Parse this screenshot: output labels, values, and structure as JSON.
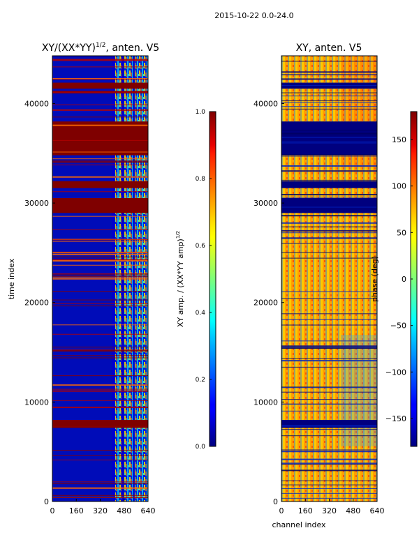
{
  "suptitle": "2015-10-22 0.0-24.0",
  "chart_data": [
    {
      "type": "heatmap",
      "title": "XY/(XX*YY)^{1/2}, anten. V5",
      "title_main": "XY/(XX*YY)",
      "title_exp": "1/2",
      "title_suffix": ", anten. V5",
      "xlabel": "",
      "ylabel": "time index",
      "xlim": [
        0,
        640
      ],
      "ylim": [
        0,
        44800
      ],
      "xticks": [
        0,
        160,
        320,
        480,
        640
      ],
      "yticks": [
        0,
        10000,
        20000,
        30000,
        40000
      ],
      "colormap": "jet",
      "saturated_rows": [
        [
          7400,
          8200
        ],
        [
          29000,
          30500
        ],
        [
          31500,
          32200
        ],
        [
          34800,
          38200
        ],
        [
          41500,
          42100
        ]
      ],
      "colorbar": {
        "label": "XY amp. / (XX*YY amp)^{1/2}",
        "label_main": "XY amp. / (XX*YY amp)",
        "label_exp": "1/2",
        "range": [
          0.0,
          1.0
        ],
        "ticks": [
          "0.0",
          "0.2",
          "0.4",
          "0.6",
          "0.8",
          "1.0"
        ]
      }
    },
    {
      "type": "heatmap",
      "title": "XY, anten. V5",
      "xlabel": "channel index",
      "ylabel": "",
      "xlim": [
        0,
        640
      ],
      "ylim": [
        0,
        44800
      ],
      "xticks": [
        0,
        160,
        320,
        480,
        640
      ],
      "yticks": [
        0,
        10000,
        20000,
        30000,
        40000
      ],
      "colormap": "jet",
      "constant_rows": [
        [
          7400,
          8200
        ],
        [
          29000,
          30500
        ],
        [
          31500,
          32200
        ],
        [
          34800,
          38200
        ],
        [
          41500,
          42100
        ]
      ],
      "colorbar": {
        "label": "phase (deg)",
        "range": [
          -180,
          180
        ],
        "ticks": [
          "150",
          "100",
          "50",
          "0",
          "−50",
          "−100",
          "−150"
        ],
        "tick_values": [
          150,
          100,
          50,
          0,
          -50,
          -100,
          -150
        ]
      }
    }
  ]
}
